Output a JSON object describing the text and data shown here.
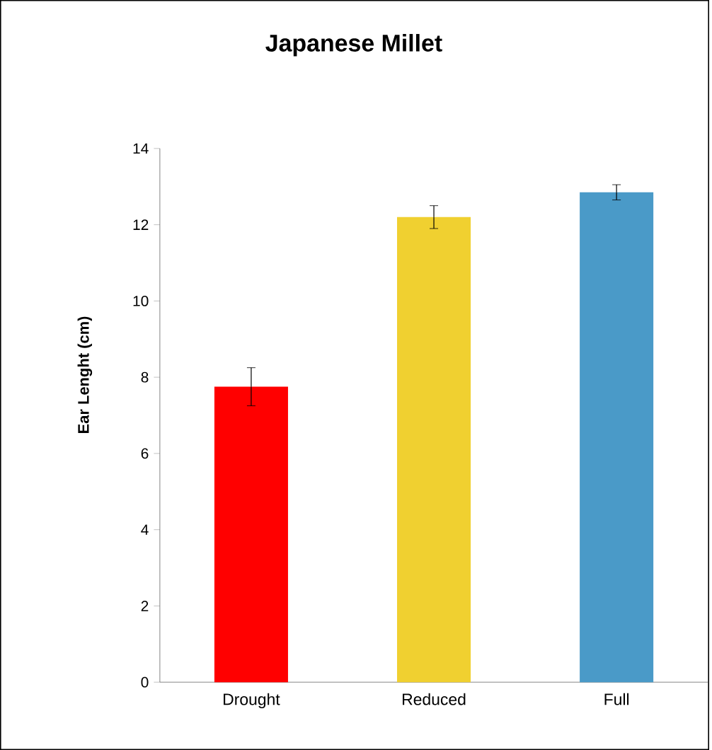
{
  "chart_data": {
    "type": "bar",
    "title": "Japanese Millet",
    "ylabel": "Ear Lenght (cm)",
    "categories": [
      "Drought",
      "Reduced",
      "Full"
    ],
    "values": [
      7.75,
      12.2,
      12.85
    ],
    "errors": [
      0.5,
      0.3,
      0.2
    ],
    "colors": [
      "#ff0000",
      "#f0d030",
      "#4a9ac8"
    ],
    "ylim": [
      0,
      14
    ],
    "yticks": [
      0,
      2,
      4,
      6,
      8,
      10,
      12,
      14
    ],
    "grid": false
  }
}
